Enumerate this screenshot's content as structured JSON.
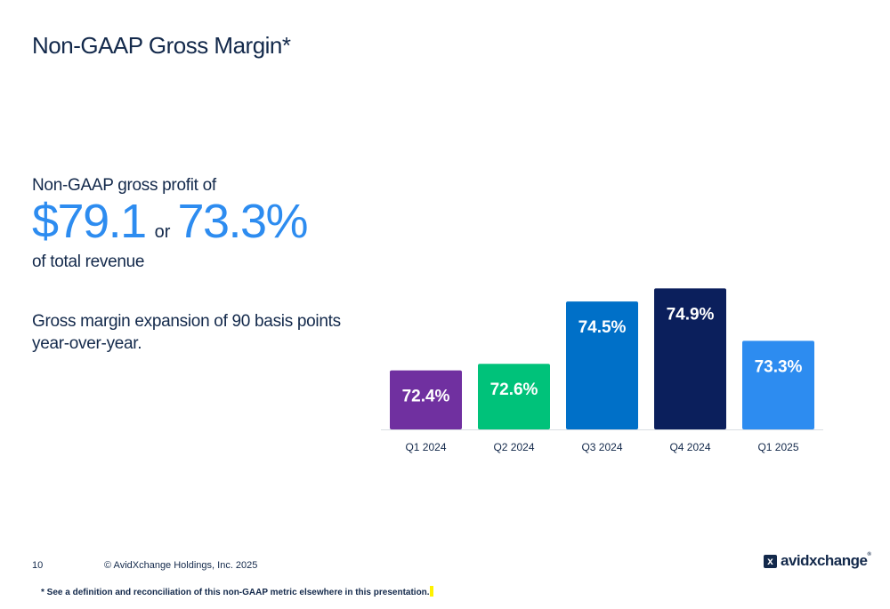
{
  "title": "Non-GAAP Gross Margin*",
  "summary": {
    "intro": "Non-GAAP gross profit of",
    "amount": "$79.1",
    "connector": "or",
    "percent": "73.3%",
    "outro": "of total revenue",
    "expansion": "Gross margin expansion of 90 basis points year-over-year."
  },
  "chart_data": {
    "type": "bar",
    "categories": [
      "Q1 2024",
      "Q2 2024",
      "Q3 2024",
      "Q4 2024",
      "Q1 2025"
    ],
    "values": [
      72.4,
      72.6,
      74.5,
      74.9,
      73.3
    ],
    "value_labels": [
      "72.4%",
      "72.6%",
      "74.5%",
      "74.9%",
      "73.3%"
    ],
    "colors": [
      "#7030a0",
      "#00c27a",
      "#0070c8",
      "#0b1f5c",
      "#2d8cf0"
    ],
    "label_color": "#ffffff",
    "axis_color": "#d9dde3",
    "grid": false,
    "legend": "none"
  },
  "footer": {
    "page_number": "10",
    "copyright": "© AvidXchange Holdings, Inc. 2025",
    "footnote": "* See a definition and reconciliation of this non-GAAP metric elsewhere in this presentation.",
    "logo_text": "avidxchange",
    "logo_mark": "x",
    "logo_tm": "®"
  }
}
